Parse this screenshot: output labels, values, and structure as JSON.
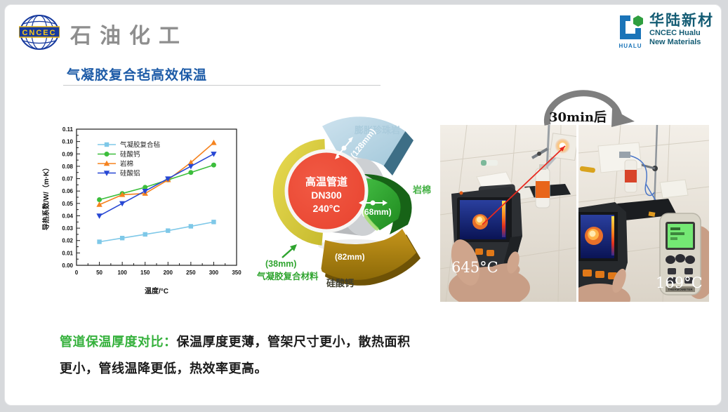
{
  "header": {
    "logo_left_text": "CNCEC",
    "brand_left": "石油化工",
    "logo_right_text": "HUALU",
    "brand_right_cn": "华陆新材",
    "brand_right_en_1": "CNCEC Hualu",
    "brand_right_en_2": "New Materials"
  },
  "title": "气凝胶复合毡高效保温",
  "chart_data": {
    "type": "line",
    "x": [
      50,
      100,
      150,
      200,
      250,
      300
    ],
    "series": [
      {
        "name": "气凝胶复合毡",
        "marker": "square",
        "color": "#7EC8E8",
        "values": [
          0.019,
          0.022,
          0.025,
          0.028,
          0.0315,
          0.035
        ]
      },
      {
        "name": "硅酸钙",
        "marker": "circle",
        "color": "#3CBE3C",
        "values": [
          0.053,
          0.058,
          0.063,
          0.069,
          0.075,
          0.081
        ]
      },
      {
        "name": "岩棉",
        "marker": "triangle-up",
        "color": "#F5831F",
        "values": [
          0.049,
          0.057,
          0.058,
          0.069,
          0.083,
          0.099
        ]
      },
      {
        "name": "硅酸铝",
        "marker": "triangle-down",
        "color": "#2747D4",
        "values": [
          0.04,
          0.05,
          0.06,
          0.07,
          0.08,
          0.09
        ]
      }
    ],
    "xlabel": "温度/°C",
    "ylabel": "导热系数/W/（m·K）",
    "xlim": [
      0,
      350
    ],
    "ylim": [
      0,
      0.11
    ],
    "xtick_step": 50,
    "ytick_step": 0.01,
    "grid": false,
    "legend_position": "upper-left"
  },
  "diagram": {
    "pipe": {
      "line1": "高温管道",
      "line2": "DN300",
      "line3": "240°C"
    },
    "layers": {
      "perlite": {
        "name": "膨胀珍珠岩",
        "dim": "(128mm)",
        "color": "#BCD8E6"
      },
      "rockwool": {
        "name": "岩棉",
        "dim": "(68mm)",
        "color": "#2FA12F"
      },
      "calcium_silicate": {
        "name": "硅酸钙",
        "dim": "(82mm)",
        "color": "#B8860B"
      },
      "aerogel": {
        "name": "气凝胶复合材料",
        "dim": "(38mm)",
        "color": "#E2D44D"
      }
    }
  },
  "photos": {
    "transition_label": "30min后",
    "before_temp": "645°C",
    "after_temp": "169°C",
    "device_label": "THERMOMETER"
  },
  "footer": {
    "lead": "管道保温厚度对比：",
    "body": "保温厚度更薄，管架尺寸更小，散热面积更小，管线温降更低，热效率更高。"
  }
}
